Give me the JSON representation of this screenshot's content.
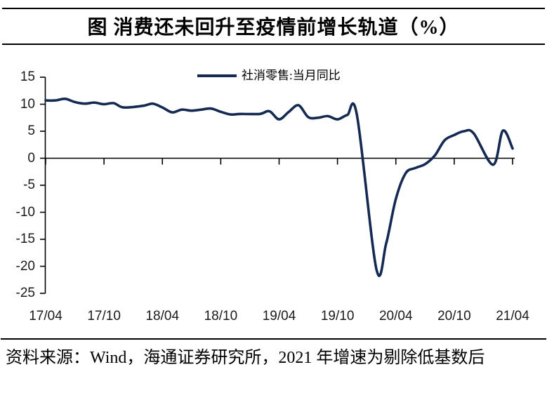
{
  "title": "图 消费还未回升至疫情前增长轨道（%）",
  "legend": {
    "label": "社消零售:当月同比"
  },
  "source_note": "资料来源：Wind，海通证券研究所，2021 年增速为剔除低基数后",
  "colors": {
    "line": "#142a52",
    "axis": "#000000",
    "tick_text": "#1a1a1a"
  },
  "chart_data": {
    "type": "line",
    "title": "图 消费还未回升至疫情前增长轨道（%）",
    "unit": "%",
    "legend_position": "top-center",
    "grid": false,
    "ylim": [
      -25,
      15
    ],
    "ytick_step": 5,
    "yticks": [
      15,
      10,
      5,
      0,
      -5,
      -10,
      -15,
      -20,
      -25
    ],
    "xtick_labels": [
      "17/04",
      "17/10",
      "18/04",
      "18/10",
      "19/04",
      "19/10",
      "20/04",
      "20/10",
      "21/04"
    ],
    "xtick_every_n_months": 6,
    "series": [
      {
        "name": "社消零售:当月同比",
        "note": "null = 1月无单独数据（1-2月合并值计于2月）；2021年为剔除低基数后的增速",
        "months": [
          "2017-04",
          "2017-05",
          "2017-06",
          "2017-07",
          "2017-08",
          "2017-09",
          "2017-10",
          "2017-11",
          "2017-12",
          "2018-01",
          "2018-02",
          "2018-03",
          "2018-04",
          "2018-05",
          "2018-06",
          "2018-07",
          "2018-08",
          "2018-09",
          "2018-10",
          "2018-11",
          "2018-12",
          "2019-01",
          "2019-02",
          "2019-03",
          "2019-04",
          "2019-05",
          "2019-06",
          "2019-07",
          "2019-08",
          "2019-09",
          "2019-10",
          "2019-11",
          "2019-12",
          "2020-01",
          "2020-02",
          "2020-03",
          "2020-04",
          "2020-05",
          "2020-06",
          "2020-07",
          "2020-08",
          "2020-09",
          "2020-10",
          "2020-11",
          "2020-12",
          "2021-01",
          "2021-02",
          "2021-03",
          "2021-04"
        ],
        "values": [
          10.7,
          10.7,
          11.0,
          10.4,
          10.1,
          10.3,
          10.0,
          10.2,
          9.4,
          null,
          9.7,
          10.1,
          9.4,
          8.5,
          9.0,
          8.8,
          9.0,
          9.2,
          8.6,
          8.1,
          8.2,
          null,
          8.2,
          8.7,
          7.2,
          8.6,
          9.8,
          7.6,
          7.5,
          7.8,
          7.2,
          8.0,
          8.0,
          null,
          -20.5,
          -15.8,
          -7.5,
          -2.8,
          -1.8,
          -1.1,
          0.5,
          3.3,
          4.3,
          5.0,
          4.6,
          null,
          -1.2,
          5.1,
          1.8
        ]
      }
    ]
  }
}
